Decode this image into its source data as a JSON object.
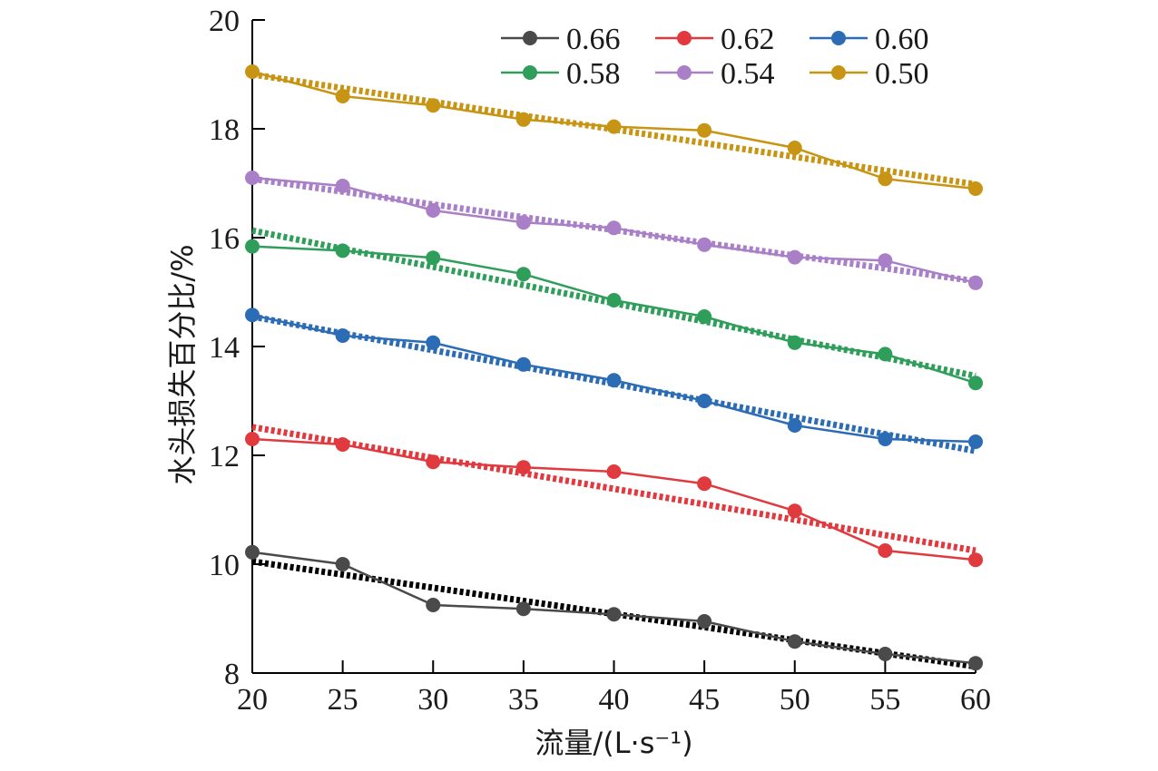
{
  "chart_data": {
    "type": "line",
    "xlabel": "流量/(L·s⁻¹)",
    "ylabel": "水头损失百分比/%",
    "xlim": [
      20,
      60
    ],
    "ylim": [
      8,
      20
    ],
    "xticks": [
      "20",
      "25",
      "30",
      "35",
      "40",
      "45",
      "50",
      "55",
      "60"
    ],
    "yticks": [
      "8",
      "10",
      "12",
      "14",
      "16",
      "18",
      "20"
    ],
    "x": [
      20,
      25,
      30,
      35,
      40,
      45,
      50,
      55,
      60
    ],
    "grid": false,
    "legend_position": "top-right",
    "series": [
      {
        "name": "0.66",
        "color": "#4a4a4a",
        "trend_color": "#000000",
        "values": [
          10.22,
          10.0,
          9.25,
          9.18,
          9.08,
          8.95,
          8.58,
          8.35,
          8.18
        ],
        "trend": [
          10.05,
          8.12
        ]
      },
      {
        "name": "0.62",
        "color": "#e0393e",
        "trend_color": "#e0393e",
        "values": [
          12.3,
          12.2,
          11.88,
          11.78,
          11.7,
          11.48,
          10.98,
          10.25,
          10.08
        ],
        "trend": [
          12.52,
          10.25
        ]
      },
      {
        "name": "0.60",
        "color": "#2b6cb5",
        "trend_color": "#2b6cb5",
        "values": [
          14.58,
          14.2,
          14.07,
          13.67,
          13.38,
          13.0,
          12.55,
          12.3,
          12.25
        ],
        "trend": [
          14.55,
          12.08
        ]
      },
      {
        "name": "0.58",
        "color": "#2f9e5b",
        "trend_color": "#2f9e5b",
        "values": [
          15.84,
          15.76,
          15.63,
          15.33,
          14.85,
          14.55,
          14.07,
          13.86,
          13.33
        ],
        "trend": [
          16.13,
          13.46
        ]
      },
      {
        "name": "0.54",
        "color": "#a97fc7",
        "trend_color": "#a97fc7",
        "values": [
          17.1,
          16.95,
          16.5,
          16.28,
          16.18,
          15.87,
          15.64,
          15.58,
          15.17
        ],
        "trend": [
          17.08,
          15.2
        ]
      },
      {
        "name": "0.50",
        "color": "#c79413",
        "trend_color": "#c79413",
        "values": [
          19.05,
          18.6,
          18.43,
          18.17,
          18.04,
          17.97,
          17.65,
          17.08,
          16.9
        ],
        "trend": [
          19.0,
          16.98
        ]
      }
    ]
  }
}
